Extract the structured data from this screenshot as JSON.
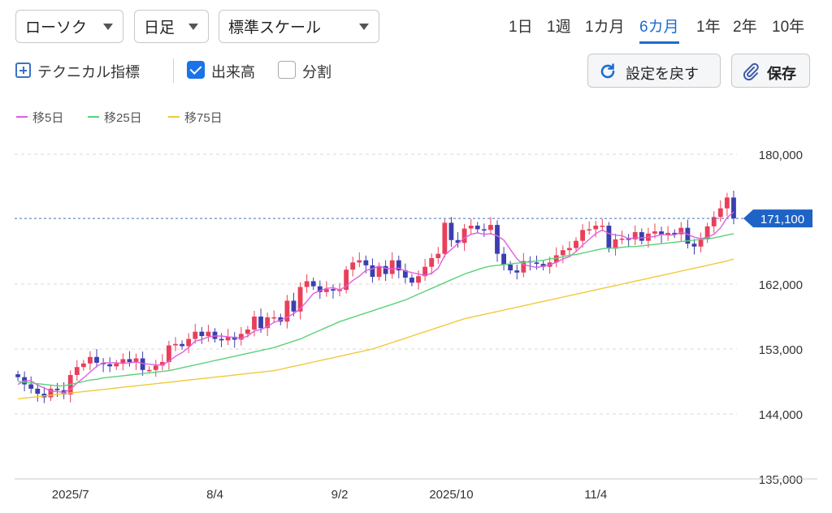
{
  "toolbar": {
    "chart_type": "ローソク",
    "interval": "日足",
    "scale": "標準スケール",
    "periods": [
      "1日",
      "1週",
      "1カ月",
      "6カ月",
      "1年",
      "2年",
      "10年"
    ],
    "active_period": "6カ月",
    "technical_label": "テクニカル指標",
    "volume_label": "出来高",
    "volume_checked": true,
    "split_label": "分割",
    "split_checked": false,
    "reset_label": "設定を戻す",
    "save_label": "保存"
  },
  "legend": [
    {
      "label": "移5日",
      "color": "#e060e0"
    },
    {
      "label": "移25日",
      "color": "#5ad27a"
    },
    {
      "label": "移75日",
      "color": "#f2c93a"
    }
  ],
  "colors": {
    "up": "#e8405a",
    "down": "#3b3fae",
    "accent": "#1e6ccf",
    "price_tag": "#1e63c6",
    "grid": "#d9d9d9"
  },
  "chart_data": {
    "type": "candlestick",
    "y_ticks": [
      "180,000",
      "162,000",
      "153,000",
      "144,000",
      "135,000"
    ],
    "y_tick_values": [
      180000,
      162000,
      153000,
      144000,
      135000
    ],
    "ylim": [
      135000,
      180000
    ],
    "x_labels": [
      "2025/7",
      "8/4",
      "9/2",
      "2025/10",
      "11/4"
    ],
    "x_label_positions": [
      8,
      30,
      49,
      66,
      88
    ],
    "current_price_label": "171,100",
    "current_price": 171100,
    "series": [
      {
        "name": "ローソク",
        "close": [
          149100,
          148100,
          147500,
          146800,
          146300,
          147500,
          147300,
          146700,
          149400,
          150500,
          151000,
          151900,
          151100,
          150900,
          150600,
          151000,
          151600,
          151200,
          151700,
          150100,
          150100,
          150700,
          151200,
          153500,
          153700,
          153400,
          154400,
          155400,
          154800,
          155400,
          154400,
          154200,
          154700,
          154300,
          155100,
          155700,
          157500,
          155900,
          157400,
          157400,
          156800,
          159700,
          158200,
          161600,
          162400,
          161700,
          160900,
          161300,
          161100,
          161200,
          164000,
          165000,
          165300,
          164600,
          163000,
          164500,
          163400,
          165300,
          163900,
          162900,
          162200,
          163100,
          164400,
          165600,
          166200,
          170500,
          168100,
          167700,
          169700,
          170100,
          169600,
          169500,
          170200,
          166200,
          164700,
          163900,
          163600,
          165200,
          165000,
          164800,
          164400,
          165000,
          166000,
          166700,
          167000,
          168000,
          169500,
          169600,
          170100,
          170100,
          166900,
          168200,
          168300,
          168200,
          169200,
          168000,
          169000,
          169300,
          168800,
          169100,
          168900,
          169800,
          167600,
          167200,
          168200,
          170000,
          171300,
          172500,
          174000,
          171100
        ]
      }
    ],
    "moving_averages": [
      {
        "name": "移5日",
        "values": [
          148100,
          148600,
          148600,
          148000,
          147600,
          147200,
          147100,
          147000,
          147400,
          148300,
          149000,
          149800,
          150600,
          151100,
          151100,
          151100,
          151000,
          151100,
          151200,
          151000,
          150900,
          150800,
          150800,
          151300,
          152000,
          152500,
          153200,
          154100,
          154300,
          154700,
          154800,
          154800,
          154700,
          154600,
          154500,
          154800,
          155500,
          155700,
          156100,
          156700,
          157000,
          157400,
          157900,
          158600,
          159600,
          160700,
          161100,
          161400,
          161500,
          161200,
          161700,
          162500,
          163100,
          163900,
          164100,
          164500,
          164200,
          164100,
          164200,
          163800,
          163600,
          163400,
          163200,
          163500,
          164200,
          166000,
          166800,
          167600,
          168400,
          168900,
          169100,
          168900,
          169000,
          168700,
          168100,
          166800,
          165500,
          164700,
          164500,
          164300,
          164500,
          164700,
          165000,
          165500,
          165800,
          166500,
          167400,
          168200,
          169000,
          169500,
          169000,
          168800,
          168700,
          168300,
          168400,
          168400,
          168500,
          168600,
          168900,
          168800,
          168800,
          169200,
          168900,
          168500,
          168300,
          168500,
          168900,
          169800,
          171200,
          172000
        ]
      },
      {
        "name": "移25日",
        "values": [
          148500,
          148400,
          148300,
          148200,
          148100,
          148000,
          147900,
          147900,
          148100,
          148300,
          148500,
          148700,
          148800,
          149000,
          149100,
          149200,
          149300,
          149400,
          149500,
          149600,
          149700,
          149800,
          149900,
          150000,
          150200,
          150400,
          150600,
          150800,
          151000,
          151200,
          151400,
          151600,
          151800,
          152000,
          152200,
          152400,
          152600,
          152800,
          153000,
          153200,
          153500,
          153800,
          154100,
          154400,
          154800,
          155200,
          155600,
          156000,
          156400,
          156800,
          157100,
          157400,
          157700,
          158000,
          158300,
          158600,
          158900,
          159200,
          159500,
          159800,
          160200,
          160600,
          161000,
          161400,
          161800,
          162200,
          162600,
          163000,
          163400,
          163700,
          164000,
          164300,
          164500,
          164600,
          164700,
          164800,
          164900,
          165000,
          165100,
          165200,
          165300,
          165500,
          165600,
          165800,
          166000,
          166100,
          166300,
          166500,
          166700,
          166900,
          167000,
          167000,
          167100,
          167200,
          167200,
          167300,
          167400,
          167500,
          167600,
          167700,
          167800,
          167900,
          168000,
          168100,
          168200,
          168300,
          168400,
          168600,
          168800,
          169000
        ]
      },
      {
        "name": "移75日",
        "values": [
          146100,
          146200,
          146300,
          146400,
          146500,
          146600,
          146700,
          146800,
          146900,
          147000,
          147100,
          147200,
          147300,
          147400,
          147500,
          147600,
          147700,
          147800,
          147900,
          148000,
          148100,
          148200,
          148300,
          148400,
          148500,
          148600,
          148700,
          148800,
          148900,
          149000,
          149100,
          149200,
          149300,
          149400,
          149500,
          149600,
          149700,
          149800,
          149900,
          150000,
          150200,
          150400,
          150600,
          150800,
          151000,
          151200,
          151400,
          151600,
          151800,
          152000,
          152200,
          152400,
          152600,
          152800,
          153000,
          153300,
          153600,
          153900,
          154200,
          154500,
          154800,
          155100,
          155400,
          155700,
          156000,
          156300,
          156600,
          156900,
          157200,
          157400,
          157600,
          157800,
          158000,
          158200,
          158400,
          158600,
          158800,
          159000,
          159200,
          159400,
          159600,
          159800,
          160000,
          160200,
          160400,
          160600,
          160800,
          161000,
          161200,
          161400,
          161600,
          161800,
          162000,
          162200,
          162400,
          162600,
          162800,
          163000,
          163200,
          163400,
          163600,
          163800,
          164000,
          164200,
          164400,
          164600,
          164800,
          165000,
          165200,
          165500
        ]
      }
    ]
  }
}
